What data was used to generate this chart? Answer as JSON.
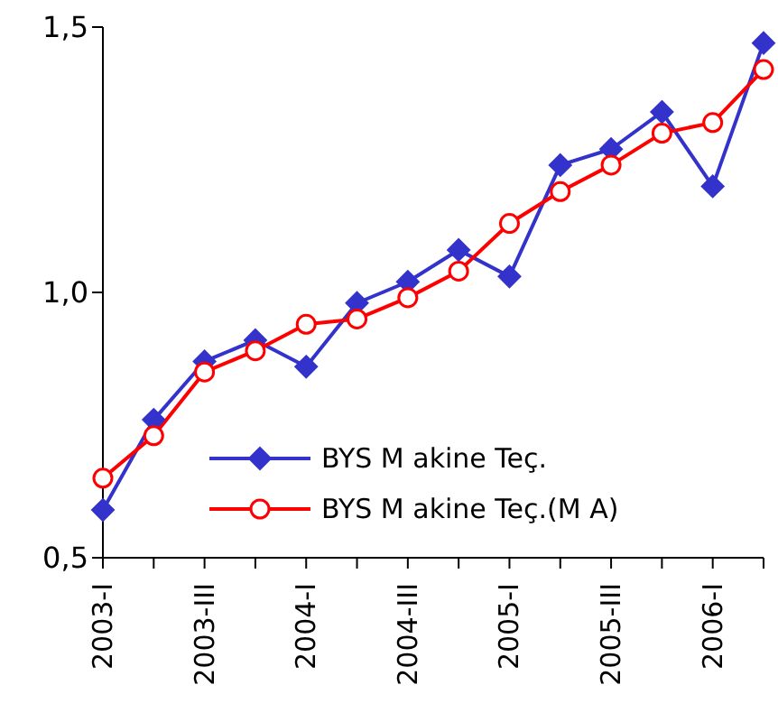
{
  "chart_data": {
    "type": "line",
    "categories": [
      "2003-I",
      null,
      "2003-III",
      null,
      "2004-I",
      null,
      "2004-III",
      null,
      "2005-I",
      null,
      "2005-III",
      null,
      "2006-I",
      null
    ],
    "series": [
      {
        "name": "BYS M akine Teç.",
        "color": "#3333cc",
        "marker": "diamond",
        "values": [
          0.59,
          0.76,
          0.87,
          0.91,
          0.86,
          0.98,
          1.02,
          1.08,
          1.03,
          1.24,
          1.27,
          1.34,
          1.2,
          1.47
        ]
      },
      {
        "name": "BYS M akine Teç.(M A)",
        "color": "#ff0000",
        "marker": "circle",
        "values": [
          0.65,
          0.73,
          0.85,
          0.89,
          0.94,
          0.95,
          0.99,
          1.04,
          1.13,
          1.19,
          1.24,
          1.3,
          1.32,
          1.42
        ]
      }
    ],
    "ylim": [
      0.5,
      1.5
    ],
    "yticks": [
      {
        "value": 0.5,
        "label": "0,5"
      },
      {
        "value": 1.0,
        "label": "1,0"
      },
      {
        "value": 1.5,
        "label": "1,5"
      }
    ],
    "grid": false,
    "legend": "bottom"
  }
}
